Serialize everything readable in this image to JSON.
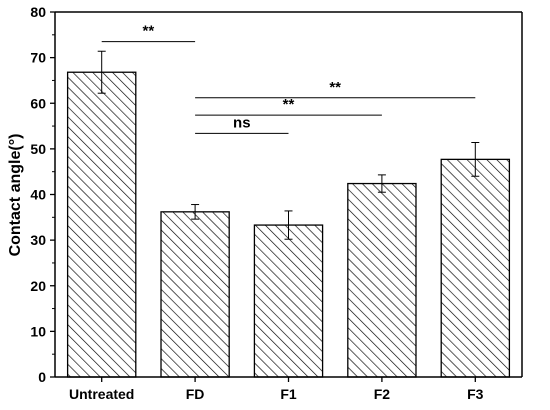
{
  "chart_data": {
    "type": "bar",
    "title": "",
    "xlabel": "",
    "ylabel": "Contact angle(°)",
    "categories": [
      "Untreated",
      "FD",
      "F1",
      "F2",
      "F3"
    ],
    "values": [
      66.8,
      36.2,
      33.3,
      42.4,
      47.7
    ],
    "errors": [
      4.6,
      1.6,
      3.1,
      1.9,
      3.7
    ],
    "ylim": [
      0,
      80
    ],
    "yticks": [
      0,
      10,
      20,
      30,
      40,
      50,
      60,
      70,
      80
    ],
    "bar_fill": "diagonal-hatch",
    "grid": false,
    "legend": "none",
    "significance": [
      {
        "from": "Untreated",
        "to": "FD",
        "label": "**",
        "y": 73.5
      },
      {
        "from": "FD",
        "to": "F3",
        "label": "**",
        "y": 61.2
      },
      {
        "from": "FD",
        "to": "F2",
        "label": "**",
        "y": 57.4
      },
      {
        "from": "FD",
        "to": "F1",
        "label": "ns",
        "y": 53.4
      }
    ]
  }
}
